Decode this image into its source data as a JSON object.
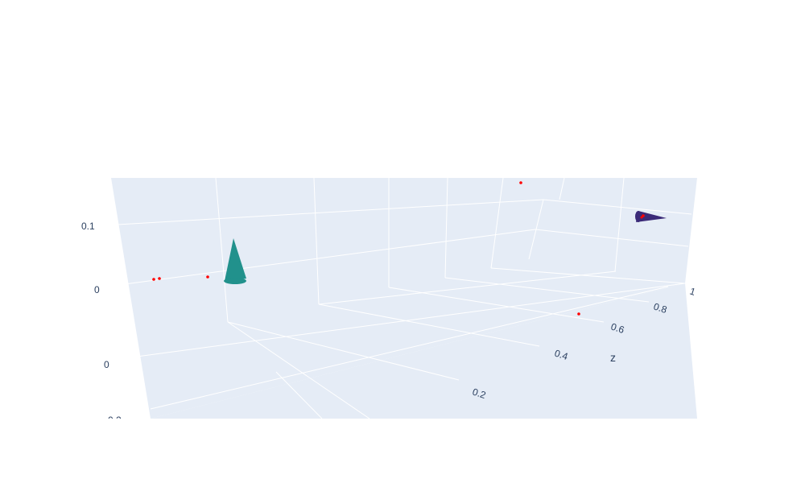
{
  "chart_data": {
    "type": "scatter3d+cone",
    "title": "",
    "scene": {
      "background": "#e5ecf6",
      "grid_color": "#ffffff",
      "grid": true
    },
    "axes": {
      "vertical": {
        "ticks": [
          "0",
          "0.1"
        ]
      },
      "front": {
        "ticks": [
          "0",
          "0.2"
        ]
      },
      "depth": {
        "title": "z",
        "ticks": [
          "0.2",
          "0.4",
          "0.6",
          "0.8",
          "1"
        ]
      }
    },
    "cones": [
      {
        "name": "",
        "color": "#21918c"
      },
      {
        "name": "",
        "color": "#3b2a78"
      }
    ],
    "marker_points": {
      "count": 7,
      "color": "#ff0000"
    }
  }
}
